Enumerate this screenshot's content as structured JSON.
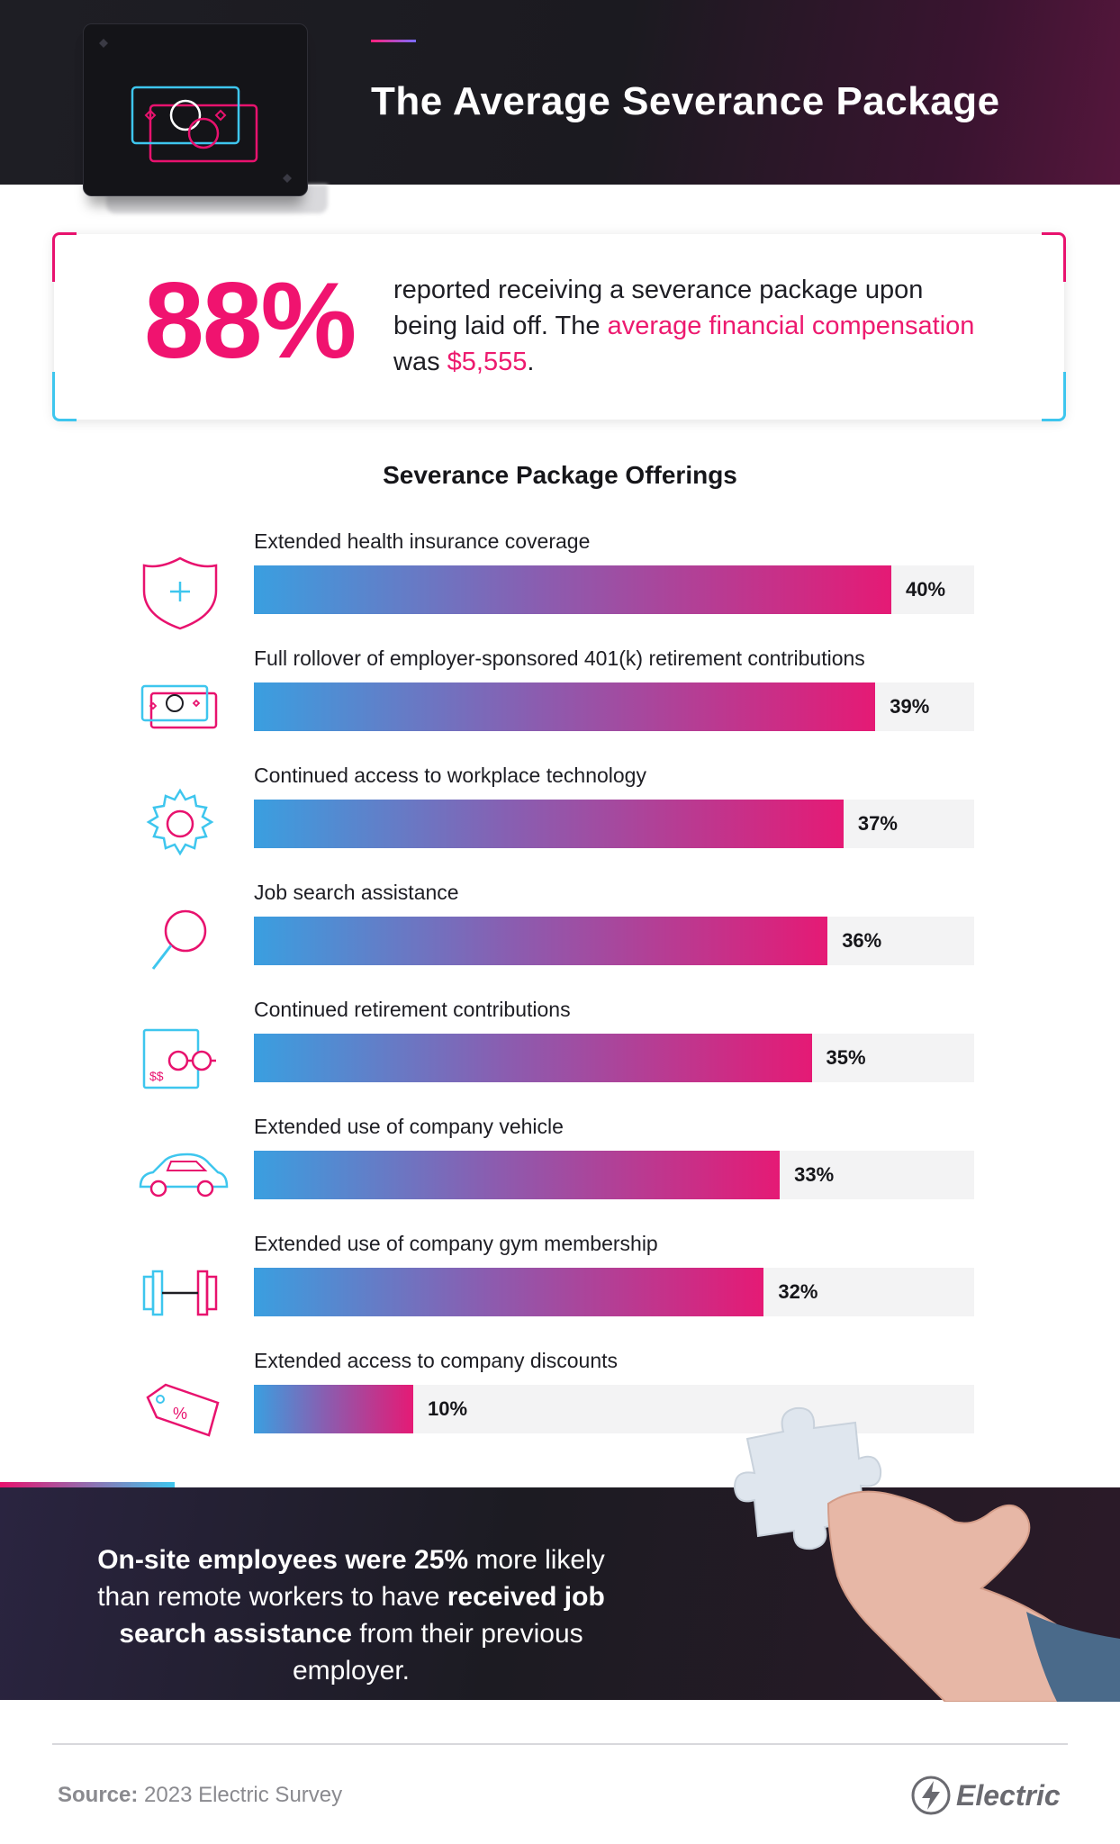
{
  "header": {
    "title": "The Average Severance Package",
    "icon": "money-bills-icon"
  },
  "stat": {
    "percent": "88%",
    "text_1": "reported receiving a severance package upon being laid off. The ",
    "highlight_1": "average financial compensation",
    "text_2": " was ",
    "highlight_2": "$5,555",
    "text_3": "."
  },
  "chart_data": {
    "type": "bar",
    "orientation": "horizontal",
    "title": "Severance Package Offerings",
    "xlim": [
      0,
      40
    ],
    "categories": [
      "Extended health insurance coverage",
      "Full rollover of employer-sponsored 401(k) retirement contributions",
      "Continued access to workplace technology",
      "Job search assistance",
      "Continued retirement contributions",
      "Extended use of company vehicle",
      "Extended use of company gym membership",
      "Extended access to company discounts"
    ],
    "values": [
      40,
      39,
      37,
      36,
      35,
      33,
      32,
      10
    ],
    "value_labels": [
      "40%",
      "39%",
      "37%",
      "36%",
      "35%",
      "33%",
      "32%",
      "10%"
    ],
    "icons": [
      "shield-plus-icon",
      "money-bills-icon",
      "gear-icon",
      "magnifier-icon",
      "retirement-glasses-icon",
      "car-icon",
      "dumbbell-icon",
      "discount-tag-icon"
    ],
    "bar_gradient": [
      "#3a9fe0",
      "#8a5db0",
      "#e51a75"
    ]
  },
  "callout": {
    "bold_1": "On-site employees were 25%",
    "text_1": " more likely than remote workers to have ",
    "bold_2": "received job search assistance",
    "text_2": " from their previous employer."
  },
  "footer": {
    "source_label": "Source:",
    "source_text": " 2023 Electric Survey",
    "brand": "Electric"
  },
  "colors": {
    "accent_pink": "#f0136f",
    "accent_blue": "#3ec6ee",
    "dark": "#1c1b22"
  }
}
